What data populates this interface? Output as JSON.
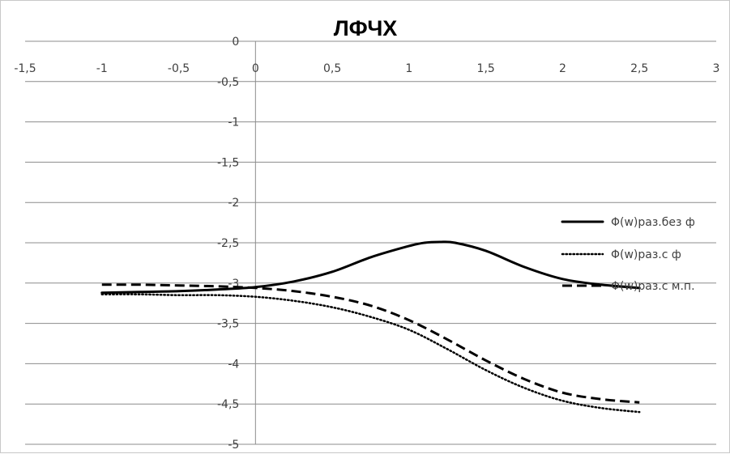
{
  "chart_data": {
    "type": "line",
    "title": "ЛФЧХ",
    "xlabel": "",
    "ylabel": "",
    "xlim": [
      -1.5,
      3
    ],
    "ylim": [
      -5,
      0
    ],
    "x_ticks": [
      {
        "value": -1.5,
        "label": "-1,5"
      },
      {
        "value": -1,
        "label": "-1"
      },
      {
        "value": -0.5,
        "label": "-0,5"
      },
      {
        "value": 0,
        "label": "0"
      },
      {
        "value": 0.5,
        "label": "0,5"
      },
      {
        "value": 1,
        "label": "1"
      },
      {
        "value": 1.5,
        "label": "1,5"
      },
      {
        "value": 2,
        "label": "2"
      },
      {
        "value": 2.5,
        "label": "2,5"
      },
      {
        "value": 3,
        "label": "3"
      }
    ],
    "y_ticks": [
      {
        "value": 0,
        "label": "0"
      },
      {
        "value": -0.5,
        "label": "-0,5"
      },
      {
        "value": -1,
        "label": "-1"
      },
      {
        "value": -1.5,
        "label": "-1,5"
      },
      {
        "value": -2,
        "label": "-2"
      },
      {
        "value": -2.5,
        "label": "-2,5"
      },
      {
        "value": -3,
        "label": "-3"
      },
      {
        "value": -3.5,
        "label": "-3,5"
      },
      {
        "value": -4,
        "label": "-4"
      },
      {
        "value": -4.5,
        "label": "-4,5"
      },
      {
        "value": -5,
        "label": "-5"
      }
    ],
    "grid": "horizontal",
    "legend_position": "right",
    "series": [
      {
        "name": "Φ(w)раз.без ф",
        "style": "solid",
        "color": "#000000",
        "x": [
          -1,
          -0.75,
          -0.5,
          -0.25,
          0,
          0.25,
          0.5,
          0.75,
          1,
          1.1,
          1.2,
          1.3,
          1.5,
          1.75,
          2,
          2.25,
          2.5
        ],
        "y": [
          -3.12,
          -3.11,
          -3.1,
          -3.08,
          -3.05,
          -2.98,
          -2.86,
          -2.68,
          -2.54,
          -2.5,
          -2.49,
          -2.5,
          -2.6,
          -2.8,
          -2.95,
          -3.02,
          -3.06
        ]
      },
      {
        "name": "Φ(w)раз.с ф",
        "style": "dotted",
        "color": "#000000",
        "x": [
          -1,
          -0.75,
          -0.5,
          -0.25,
          0,
          0.25,
          0.5,
          0.75,
          1,
          1.25,
          1.5,
          1.75,
          2,
          2.25,
          2.5
        ],
        "y": [
          -3.14,
          -3.14,
          -3.15,
          -3.15,
          -3.17,
          -3.22,
          -3.3,
          -3.42,
          -3.58,
          -3.82,
          -4.08,
          -4.3,
          -4.46,
          -4.55,
          -4.6
        ]
      },
      {
        "name": "Φ(w)раз.с м.п.",
        "style": "dashed",
        "color": "#000000",
        "x": [
          -1,
          -0.75,
          -0.5,
          -0.25,
          0,
          0.25,
          0.5,
          0.75,
          1,
          1.25,
          1.5,
          1.75,
          2,
          2.25,
          2.5
        ],
        "y": [
          -3.02,
          -3.02,
          -3.03,
          -3.04,
          -3.06,
          -3.1,
          -3.17,
          -3.28,
          -3.46,
          -3.7,
          -3.96,
          -4.19,
          -4.36,
          -4.44,
          -4.48
        ]
      }
    ]
  }
}
